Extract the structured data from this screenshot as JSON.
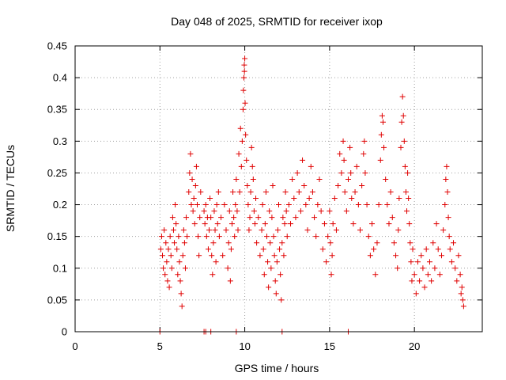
{
  "chart_data": {
    "type": "scatter",
    "title": "Day 048 of 2025, SRMTID for receiver ixop",
    "xlabel": "GPS time / hours",
    "ylabel": "SRMTID / TECUs",
    "xlim": [
      0,
      24
    ],
    "ylim": [
      0,
      0.45
    ],
    "xticks": [
      0,
      5,
      10,
      15,
      20
    ],
    "xtick_labels": [
      "0",
      "5",
      "10",
      "15",
      "20"
    ],
    "yticks": [
      0,
      0.05,
      0.1,
      0.15,
      0.2,
      0.25,
      0.3,
      0.35,
      0.4,
      0.45
    ],
    "ytick_labels": [
      "0",
      "0.05",
      "0.1",
      "0.15",
      "0.2",
      "0.25",
      "0.3",
      "0.35",
      "0.4",
      "0.45"
    ],
    "grid": true,
    "marker": "plus",
    "series": [
      {
        "name": "SRMTID",
        "color": "#e00000",
        "points": [
          [
            5.0,
            0.0
          ],
          [
            7.6,
            0.0
          ],
          [
            7.7,
            0.0
          ],
          [
            8.0,
            0.0
          ],
          [
            9.5,
            0.0
          ],
          [
            12.2,
            0.0
          ],
          [
            16.1,
            0.0
          ],
          [
            5.05,
            0.13
          ],
          [
            5.1,
            0.15
          ],
          [
            5.15,
            0.12
          ],
          [
            5.2,
            0.1
          ],
          [
            5.25,
            0.16
          ],
          [
            5.3,
            0.09
          ],
          [
            5.35,
            0.14
          ],
          [
            5.4,
            0.11
          ],
          [
            5.45,
            0.08
          ],
          [
            5.5,
            0.13
          ],
          [
            5.55,
            0.07
          ],
          [
            5.6,
            0.15
          ],
          [
            5.65,
            0.12
          ],
          [
            5.7,
            0.1
          ],
          [
            5.75,
            0.18
          ],
          [
            5.8,
            0.16
          ],
          [
            5.85,
            0.14
          ],
          [
            5.9,
            0.2
          ],
          [
            5.95,
            0.17
          ],
          [
            6.0,
            0.13
          ],
          [
            6.05,
            0.09
          ],
          [
            6.1,
            0.15
          ],
          [
            6.15,
            0.11
          ],
          [
            6.2,
            0.08
          ],
          [
            6.25,
            0.06
          ],
          [
            6.3,
            0.04
          ],
          [
            6.35,
            0.12
          ],
          [
            6.4,
            0.16
          ],
          [
            6.45,
            0.14
          ],
          [
            6.5,
            0.1
          ],
          [
            6.55,
            0.18
          ],
          [
            6.6,
            0.15
          ],
          [
            6.7,
            0.22
          ],
          [
            6.75,
            0.25
          ],
          [
            6.8,
            0.28
          ],
          [
            6.85,
            0.2
          ],
          [
            6.9,
            0.24
          ],
          [
            6.95,
            0.19
          ],
          [
            7.0,
            0.21
          ],
          [
            7.05,
            0.17
          ],
          [
            7.1,
            0.23
          ],
          [
            7.15,
            0.26
          ],
          [
            7.2,
            0.2
          ],
          [
            7.25,
            0.15
          ],
          [
            7.3,
            0.12
          ],
          [
            7.35,
            0.18
          ],
          [
            7.4,
            0.22
          ],
          [
            7.6,
            0.19
          ],
          [
            7.65,
            0.17
          ],
          [
            7.7,
            0.2
          ],
          [
            7.75,
            0.15
          ],
          [
            7.8,
            0.18
          ],
          [
            7.85,
            0.13
          ],
          [
            7.9,
            0.16
          ],
          [
            7.95,
            0.21
          ],
          [
            8.0,
            0.18
          ],
          [
            8.05,
            0.12
          ],
          [
            8.1,
            0.09
          ],
          [
            8.15,
            0.14
          ],
          [
            8.2,
            0.19
          ],
          [
            8.25,
            0.16
          ],
          [
            8.3,
            0.11
          ],
          [
            8.35,
            0.2
          ],
          [
            8.4,
            0.17
          ],
          [
            8.45,
            0.22
          ],
          [
            8.5,
            0.15
          ],
          [
            8.6,
            0.18
          ],
          [
            8.7,
            0.12
          ],
          [
            8.8,
            0.2
          ],
          [
            8.9,
            0.16
          ],
          [
            9.0,
            0.1
          ],
          [
            9.05,
            0.14
          ],
          [
            9.1,
            0.19
          ],
          [
            9.15,
            0.08
          ],
          [
            9.2,
            0.13
          ],
          [
            9.25,
            0.17
          ],
          [
            9.3,
            0.22
          ],
          [
            9.35,
            0.18
          ],
          [
            9.4,
            0.15
          ],
          [
            9.45,
            0.2
          ],
          [
            9.5,
            0.24
          ],
          [
            9.55,
            0.19
          ],
          [
            9.6,
            0.16
          ],
          [
            9.65,
            0.28
          ],
          [
            9.7,
            0.22
          ],
          [
            9.75,
            0.32
          ],
          [
            9.8,
            0.26
          ],
          [
            9.85,
            0.3
          ],
          [
            9.9,
            0.35
          ],
          [
            9.92,
            0.38
          ],
          [
            9.95,
            0.4
          ],
          [
            9.97,
            0.42
          ],
          [
            10.0,
            0.43
          ],
          [
            9.98,
            0.41
          ],
          [
            10.02,
            0.36
          ],
          [
            10.05,
            0.31
          ],
          [
            10.1,
            0.27
          ],
          [
            10.15,
            0.23
          ],
          [
            10.2,
            0.2
          ],
          [
            10.25,
            0.16
          ],
          [
            10.3,
            0.18
          ],
          [
            10.35,
            0.22
          ],
          [
            10.4,
            0.29
          ],
          [
            10.45,
            0.26
          ],
          [
            10.5,
            0.24
          ],
          [
            10.55,
            0.19
          ],
          [
            10.6,
            0.17
          ],
          [
            10.65,
            0.21
          ],
          [
            10.7,
            0.14
          ],
          [
            10.8,
            0.18
          ],
          [
            10.9,
            0.12
          ],
          [
            11.0,
            0.16
          ],
          [
            11.05,
            0.2
          ],
          [
            11.1,
            0.13
          ],
          [
            11.15,
            0.09
          ],
          [
            11.2,
            0.17
          ],
          [
            11.25,
            0.22
          ],
          [
            11.3,
            0.15
          ],
          [
            11.35,
            0.11
          ],
          [
            11.4,
            0.07
          ],
          [
            11.45,
            0.19
          ],
          [
            11.5,
            0.14
          ],
          [
            11.55,
            0.1
          ],
          [
            11.6,
            0.18
          ],
          [
            11.65,
            0.23
          ],
          [
            11.7,
            0.15
          ],
          [
            11.75,
            0.12
          ],
          [
            11.8,
            0.08
          ],
          [
            11.85,
            0.06
          ],
          [
            11.9,
            0.11
          ],
          [
            11.95,
            0.16
          ],
          [
            12.0,
            0.2
          ],
          [
            12.05,
            0.13
          ],
          [
            12.1,
            0.09
          ],
          [
            12.15,
            0.05
          ],
          [
            12.2,
            0.14
          ],
          [
            12.25,
            0.18
          ],
          [
            12.3,
            0.12
          ],
          [
            12.35,
            0.17
          ],
          [
            12.4,
            0.22
          ],
          [
            12.45,
            0.19
          ],
          [
            12.5,
            0.15
          ],
          [
            12.6,
            0.2
          ],
          [
            12.7,
            0.17
          ],
          [
            12.8,
            0.24
          ],
          [
            12.9,
            0.21
          ],
          [
            13.0,
            0.18
          ],
          [
            13.1,
            0.25
          ],
          [
            13.2,
            0.22
          ],
          [
            13.3,
            0.19
          ],
          [
            13.4,
            0.27
          ],
          [
            13.5,
            0.23
          ],
          [
            13.6,
            0.2
          ],
          [
            13.7,
            0.16
          ],
          [
            13.8,
            0.21
          ],
          [
            13.9,
            0.26
          ],
          [
            14.0,
            0.22
          ],
          [
            14.1,
            0.18
          ],
          [
            14.2,
            0.15
          ],
          [
            14.3,
            0.2
          ],
          [
            14.4,
            0.24
          ],
          [
            14.5,
            0.19
          ],
          [
            14.6,
            0.13
          ],
          [
            14.7,
            0.17
          ],
          [
            14.8,
            0.11
          ],
          [
            14.9,
            0.15
          ],
          [
            15.0,
            0.19
          ],
          [
            15.05,
            0.14
          ],
          [
            15.1,
            0.09
          ],
          [
            15.15,
            0.12
          ],
          [
            15.2,
            0.17
          ],
          [
            15.3,
            0.21
          ],
          [
            15.4,
            0.16
          ],
          [
            15.5,
            0.23
          ],
          [
            15.6,
            0.28
          ],
          [
            15.7,
            0.25
          ],
          [
            15.8,
            0.3
          ],
          [
            15.85,
            0.27
          ],
          [
            15.9,
            0.22
          ],
          [
            16.0,
            0.19
          ],
          [
            16.1,
            0.24
          ],
          [
            16.2,
            0.29
          ],
          [
            16.25,
            0.25
          ],
          [
            16.3,
            0.21
          ],
          [
            16.4,
            0.17
          ],
          [
            16.5,
            0.22
          ],
          [
            16.6,
            0.26
          ],
          [
            16.7,
            0.2
          ],
          [
            16.8,
            0.16
          ],
          [
            16.9,
            0.23
          ],
          [
            17.0,
            0.28
          ],
          [
            17.05,
            0.3
          ],
          [
            17.1,
            0.25
          ],
          [
            17.2,
            0.2
          ],
          [
            17.3,
            0.15
          ],
          [
            17.4,
            0.12
          ],
          [
            17.5,
            0.17
          ],
          [
            17.6,
            0.13
          ],
          [
            17.7,
            0.09
          ],
          [
            17.8,
            0.14
          ],
          [
            17.9,
            0.2
          ],
          [
            18.0,
            0.27
          ],
          [
            18.05,
            0.31
          ],
          [
            18.1,
            0.34
          ],
          [
            18.15,
            0.33
          ],
          [
            18.2,
            0.29
          ],
          [
            18.3,
            0.24
          ],
          [
            18.4,
            0.2
          ],
          [
            18.5,
            0.17
          ],
          [
            18.6,
            0.22
          ],
          [
            18.7,
            0.18
          ],
          [
            18.8,
            0.14
          ],
          [
            18.9,
            0.12
          ],
          [
            19.0,
            0.1
          ],
          [
            19.05,
            0.16
          ],
          [
            19.1,
            0.21
          ],
          [
            19.2,
            0.29
          ],
          [
            19.25,
            0.33
          ],
          [
            19.3,
            0.37
          ],
          [
            19.35,
            0.34
          ],
          [
            19.4,
            0.3
          ],
          [
            19.45,
            0.26
          ],
          [
            19.5,
            0.22
          ],
          [
            19.55,
            0.19
          ],
          [
            19.6,
            0.25
          ],
          [
            19.65,
            0.21
          ],
          [
            19.7,
            0.17
          ],
          [
            19.75,
            0.14
          ],
          [
            19.8,
            0.11
          ],
          [
            19.85,
            0.08
          ],
          [
            19.9,
            0.13
          ],
          [
            20.0,
            0.09
          ],
          [
            20.1,
            0.06
          ],
          [
            20.2,
            0.11
          ],
          [
            20.3,
            0.08
          ],
          [
            20.4,
            0.12
          ],
          [
            20.5,
            0.1
          ],
          [
            20.6,
            0.07
          ],
          [
            20.7,
            0.13
          ],
          [
            20.8,
            0.09
          ],
          [
            20.9,
            0.11
          ],
          [
            21.0,
            0.08
          ],
          [
            21.1,
            0.14
          ],
          [
            21.2,
            0.1
          ],
          [
            21.3,
            0.17
          ],
          [
            21.4,
            0.13
          ],
          [
            21.5,
            0.09
          ],
          [
            21.6,
            0.12
          ],
          [
            21.7,
            0.16
          ],
          [
            21.8,
            0.2
          ],
          [
            21.85,
            0.24
          ],
          [
            21.9,
            0.26
          ],
          [
            21.95,
            0.22
          ],
          [
            22.0,
            0.18
          ],
          [
            22.05,
            0.15
          ],
          [
            22.1,
            0.13
          ],
          [
            22.2,
            0.11
          ],
          [
            22.3,
            0.14
          ],
          [
            22.4,
            0.1
          ],
          [
            22.5,
            0.08
          ],
          [
            22.6,
            0.12
          ],
          [
            22.7,
            0.09
          ],
          [
            22.75,
            0.06
          ],
          [
            22.8,
            0.07
          ],
          [
            22.85,
            0.05
          ],
          [
            22.9,
            0.04
          ]
        ]
      }
    ]
  }
}
